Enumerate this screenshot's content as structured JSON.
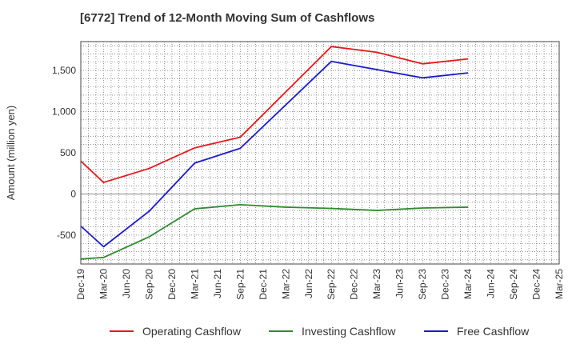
{
  "chart_data": {
    "type": "line",
    "title": "[6772]  Trend of 12-Month Moving Sum of Cashflows",
    "xlabel": "",
    "ylabel": "Amount (million yen)",
    "categories": [
      "Dec-19",
      "Mar-20",
      "Jun-20",
      "Sep-20",
      "Dec-20",
      "Mar-21",
      "Jun-21",
      "Sep-21",
      "Dec-21",
      "Mar-22",
      "Jun-22",
      "Sep-22",
      "Dec-22",
      "Mar-23",
      "Jun-23",
      "Sep-23",
      "Dec-23",
      "Mar-24",
      "Jun-24",
      "Sep-24",
      "Dec-24",
      "Mar-25"
    ],
    "ylim": [
      -850,
      1850
    ],
    "yticks": [
      -500,
      0,
      500,
      1000,
      1500
    ],
    "ytick_labels": [
      "-500",
      "0",
      "500",
      "1,000",
      "1,500"
    ],
    "grid": true,
    "legend_position": "bottom",
    "series": [
      {
        "name": "Operating Cashflow",
        "color": "#e41a1c",
        "values": [
          400,
          140,
          null,
          310,
          null,
          560,
          null,
          690,
          null,
          null,
          null,
          1790,
          null,
          1720,
          null,
          1580,
          null,
          1640,
          null,
          null,
          null,
          null
        ]
      },
      {
        "name": "Investing Cashflow",
        "color": "#2e8b2e",
        "values": [
          -790,
          -770,
          null,
          -520,
          null,
          -180,
          null,
          -130,
          null,
          -160,
          null,
          -175,
          null,
          -200,
          null,
          -170,
          null,
          -160,
          null,
          null,
          null,
          null
        ]
      },
      {
        "name": "Free Cashflow",
        "color": "#1a1acd",
        "values": [
          -390,
          -640,
          null,
          -210,
          null,
          375,
          null,
          555,
          null,
          null,
          null,
          1610,
          null,
          1510,
          null,
          1410,
          null,
          1470,
          null,
          null,
          null,
          null
        ]
      }
    ]
  }
}
